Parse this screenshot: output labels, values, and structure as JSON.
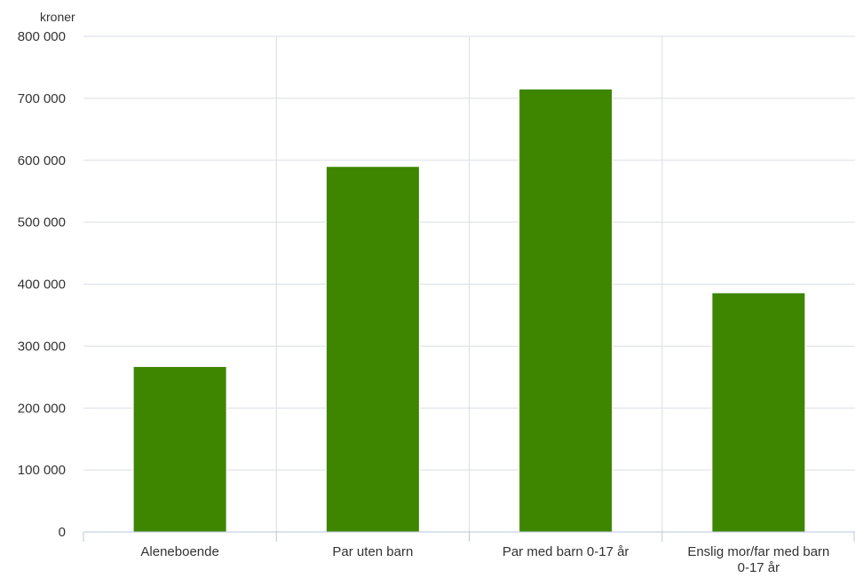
{
  "chart_data": {
    "type": "bar",
    "ylabel": "kroner",
    "ylim": [
      0,
      800000
    ],
    "ytick_step": 100000,
    "ytick_labels": [
      "0",
      "100 000",
      "200 000",
      "300 000",
      "400 000",
      "500 000",
      "600 000",
      "700 000",
      "800 000"
    ],
    "categories": [
      "Aleneboende",
      "Par uten barn",
      "Par med barn 0-17 år",
      "Enslig mor/far med barn 0-17 år"
    ],
    "category_label_lines": [
      [
        "Aleneboende"
      ],
      [
        "Par uten barn"
      ],
      [
        "Par med barn 0-17 år"
      ],
      [
        "Enslig mor/far med barn",
        "0-17 år"
      ]
    ],
    "values": [
      267000,
      590000,
      715000,
      386000
    ],
    "grid": true,
    "colors": {
      "bar": "#3e8500",
      "grid": "#d9dee6",
      "axis": "#b8c7dc",
      "text": "#333333"
    }
  }
}
